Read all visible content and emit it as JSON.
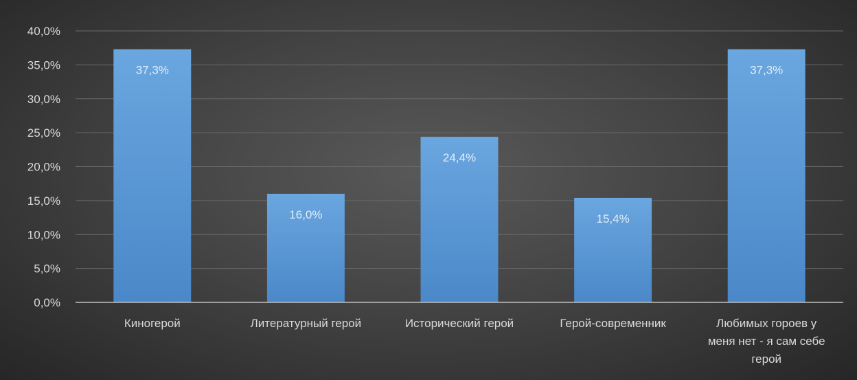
{
  "chart_data": {
    "type": "bar",
    "categories": [
      "Киногерой",
      "Литературный герой",
      "Исторический герой",
      "Герой-современник",
      "Любимых гороев у меня нет - я сам себе герой"
    ],
    "category_lines": [
      [
        "Киногерой"
      ],
      [
        "Литературный герой"
      ],
      [
        "Исторический герой"
      ],
      [
        "Герой-современник"
      ],
      [
        "Любимых гороев у",
        "меня нет - я сам себе",
        "герой"
      ]
    ],
    "values": [
      37.3,
      16.0,
      24.4,
      15.4,
      37.3
    ],
    "data_labels": [
      "37,3%",
      "16,0%",
      "24,4%",
      "15,4%",
      "37,3%"
    ],
    "ylim": [
      0,
      40
    ],
    "yticks": [
      "0,0%",
      "5,0%",
      "10,0%",
      "15,0%",
      "20,0%",
      "25,0%",
      "30,0%",
      "35,0%",
      "40,0%"
    ],
    "grid": true,
    "legend": "none",
    "bar_color": "#5b9bd5",
    "background_color": "#404040"
  }
}
